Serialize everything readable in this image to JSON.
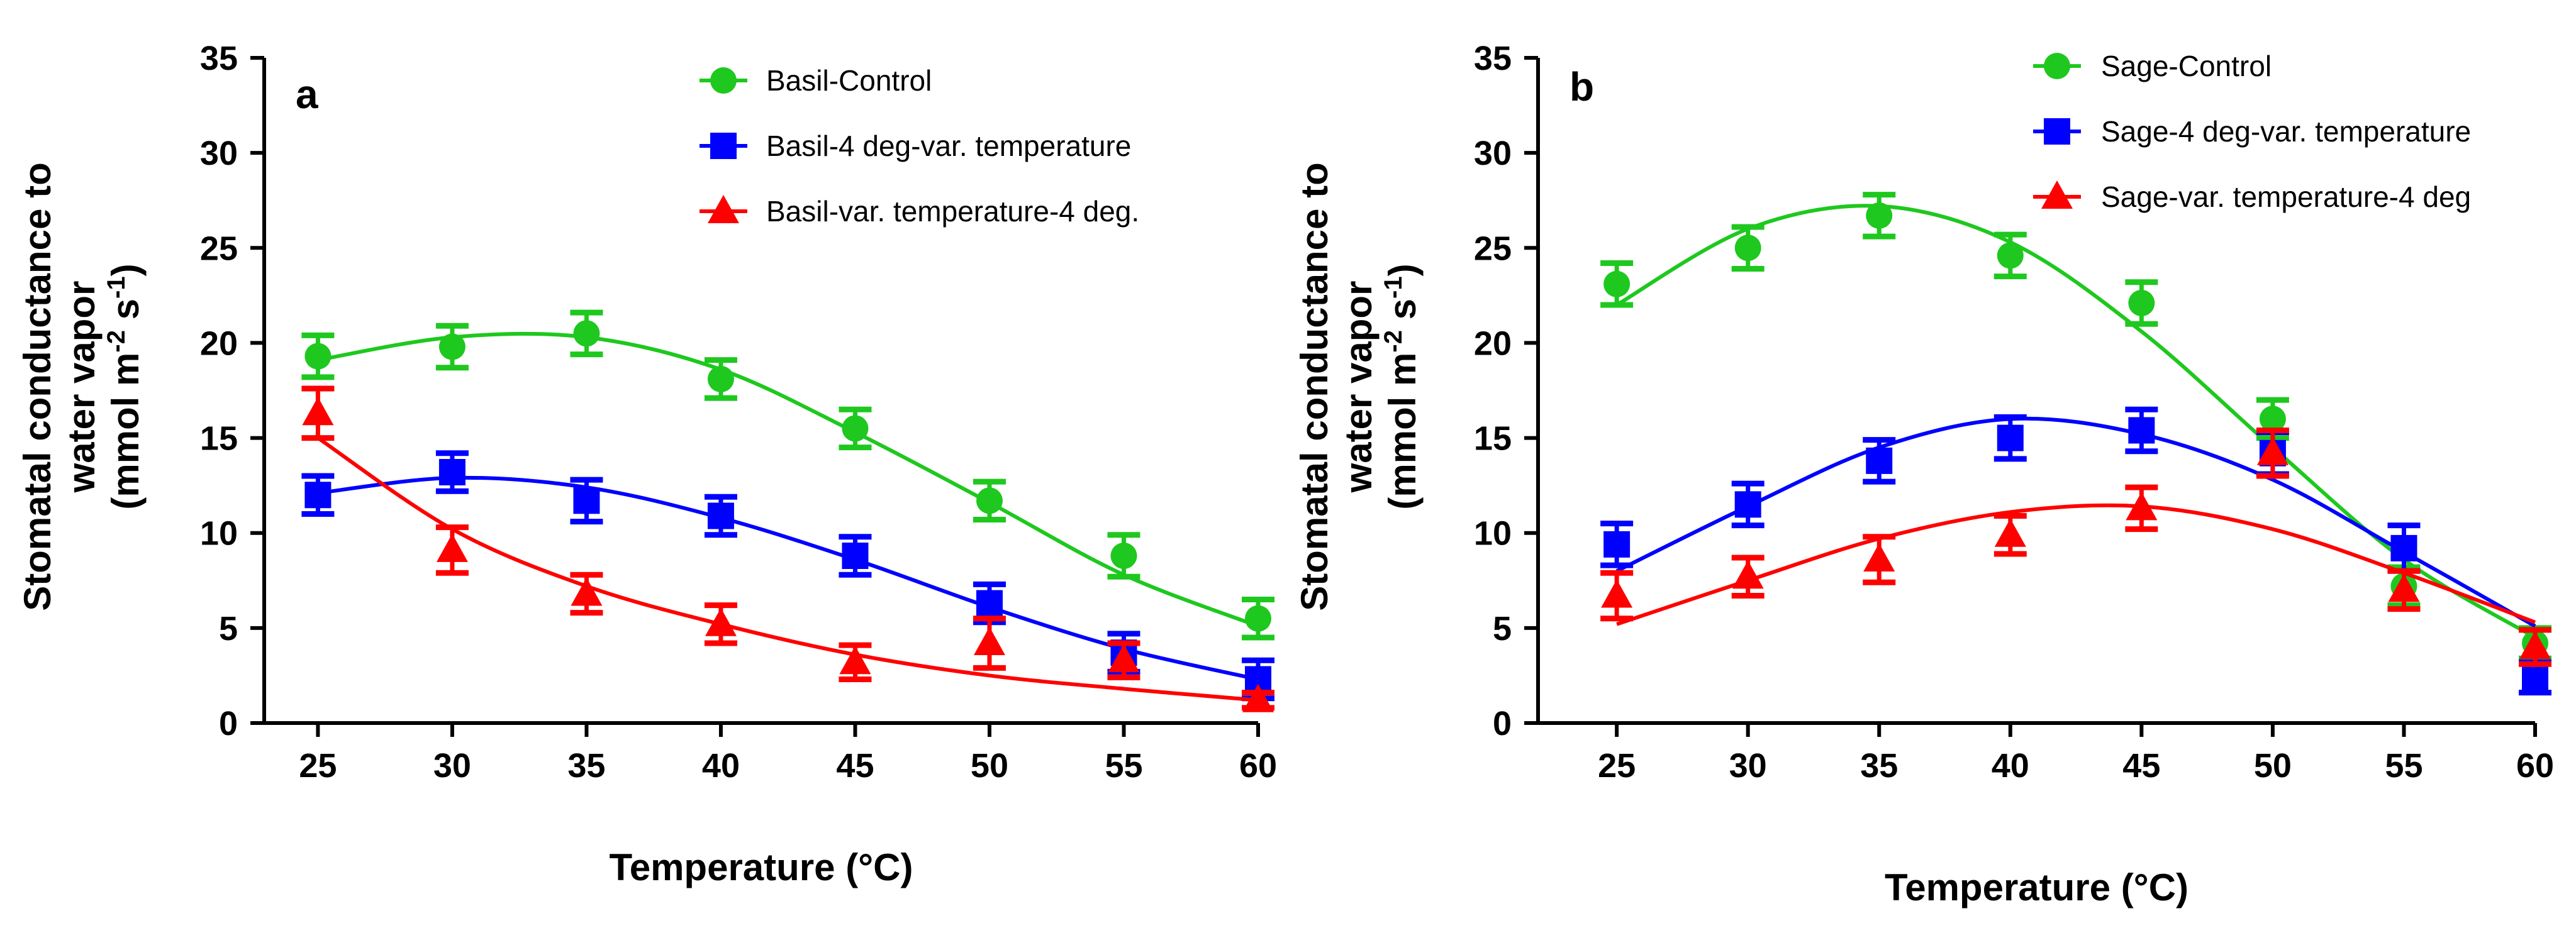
{
  "chart_data": [
    {
      "panel": "a",
      "type": "line",
      "title": "",
      "xlabel": "Temperature (°C)",
      "ylabel_lines": [
        "Stomatal conductance to",
        "water vapor",
        "(mmol m-2 s-1)"
      ],
      "ylabel_parts": {
        "open": "(mmol m",
        "sup1": "-2",
        "mid": " s",
        "sup2": "-1",
        "close": ")"
      },
      "x": [
        25,
        30,
        35,
        40,
        45,
        50,
        55,
        60
      ],
      "xlim": [
        23,
        60
      ],
      "ylim": [
        0,
        35
      ],
      "x_ticks": [
        "25",
        "30",
        "35",
        "40",
        "45",
        "50",
        "55",
        "60"
      ],
      "y_ticks": [
        "0",
        "5",
        "10",
        "15",
        "20",
        "25",
        "30",
        "35"
      ],
      "grid": false,
      "legend_position": "top-right",
      "series": [
        {
          "name": "Basil-Control",
          "color": "#1ec81e",
          "marker": "circle",
          "values": [
            19.3,
            19.8,
            20.5,
            18.1,
            15.5,
            11.7,
            8.8,
            5.5
          ],
          "errors": [
            1.1,
            1.1,
            1.1,
            1.0,
            1.0,
            1.0,
            1.1,
            1.0
          ],
          "fit": [
            19.1,
            20.3,
            20.3,
            18.6,
            15.3,
            11.6,
            7.8,
            5.1
          ]
        },
        {
          "name": "Basil-4 deg-var. temperature",
          "color": "#0000ff",
          "marker": "square",
          "values": [
            12.0,
            13.2,
            11.7,
            10.9,
            8.8,
            6.3,
            3.7,
            2.3
          ],
          "errors": [
            1.0,
            1.0,
            1.1,
            1.0,
            1.0,
            1.0,
            1.0,
            1.0
          ],
          "fit": [
            12.1,
            12.9,
            12.4,
            10.8,
            8.6,
            6.1,
            3.9,
            2.3
          ]
        },
        {
          "name": "Basil-var. temperature-4 deg.",
          "color": "#ff0000",
          "marker": "triangle",
          "values": [
            16.3,
            9.1,
            6.8,
            5.2,
            3.2,
            4.2,
            3.3,
            1.2
          ],
          "errors": [
            1.3,
            1.2,
            1.0,
            1.0,
            0.9,
            1.3,
            0.9,
            0.4
          ],
          "fit": [
            15.0,
            10.2,
            7.2,
            5.2,
            3.6,
            2.5,
            1.8,
            1.2
          ]
        }
      ]
    },
    {
      "panel": "b",
      "type": "line",
      "title": "",
      "xlabel": "Temperature (°C)",
      "ylabel_lines": [
        "Stomatal conductance to",
        "water vapor",
        "(mmol m-2 s-1)"
      ],
      "ylabel_parts": {
        "open": "(mmol m",
        "sup1": "-2",
        "mid": " s",
        "sup2": "-1",
        "close": ")"
      },
      "x": [
        25,
        30,
        35,
        40,
        45,
        50,
        55,
        60
      ],
      "xlim": [
        22,
        60
      ],
      "ylim": [
        0,
        35
      ],
      "x_ticks": [
        "25",
        "30",
        "35",
        "40",
        "45",
        "50",
        "55",
        "60"
      ],
      "y_ticks": [
        "0",
        "5",
        "10",
        "15",
        "20",
        "25",
        "30",
        "35"
      ],
      "grid": false,
      "legend_position": "top-right",
      "series": [
        {
          "name": "Sage-Control",
          "color": "#1ec81e",
          "marker": "circle",
          "values": [
            23.1,
            25.0,
            26.7,
            24.6,
            22.1,
            16.0,
            7.2,
            4.2
          ],
          "errors": [
            1.1,
            1.1,
            1.1,
            1.1,
            1.1,
            1.0,
            1.0,
            0.8
          ],
          "fit": [
            22.0,
            26.0,
            27.2,
            25.3,
            20.6,
            14.5,
            8.6,
            4.5
          ]
        },
        {
          "name": "Sage-4 deg-var. temperature",
          "color": "#0000ff",
          "marker": "square",
          "values": [
            9.4,
            11.5,
            13.8,
            15.0,
            15.4,
            14.2,
            9.2,
            2.4
          ],
          "errors": [
            1.1,
            1.1,
            1.1,
            1.1,
            1.1,
            1.1,
            1.2,
            0.8
          ],
          "fit": [
            8.0,
            11.4,
            14.5,
            16.0,
            15.2,
            12.8,
            9.0,
            5.1
          ]
        },
        {
          "name": "Sage-var. temperature-4 deg",
          "color": "#ff0000",
          "marker": "triangle",
          "values": [
            6.7,
            7.7,
            8.6,
            9.9,
            11.3,
            14.2,
            7.0,
            4.0
          ],
          "errors": [
            1.2,
            1.0,
            1.2,
            1.0,
            1.1,
            1.2,
            1.0,
            0.9
          ],
          "fit": [
            5.2,
            7.5,
            9.7,
            11.1,
            11.4,
            10.2,
            7.9,
            5.3
          ]
        }
      ]
    }
  ]
}
